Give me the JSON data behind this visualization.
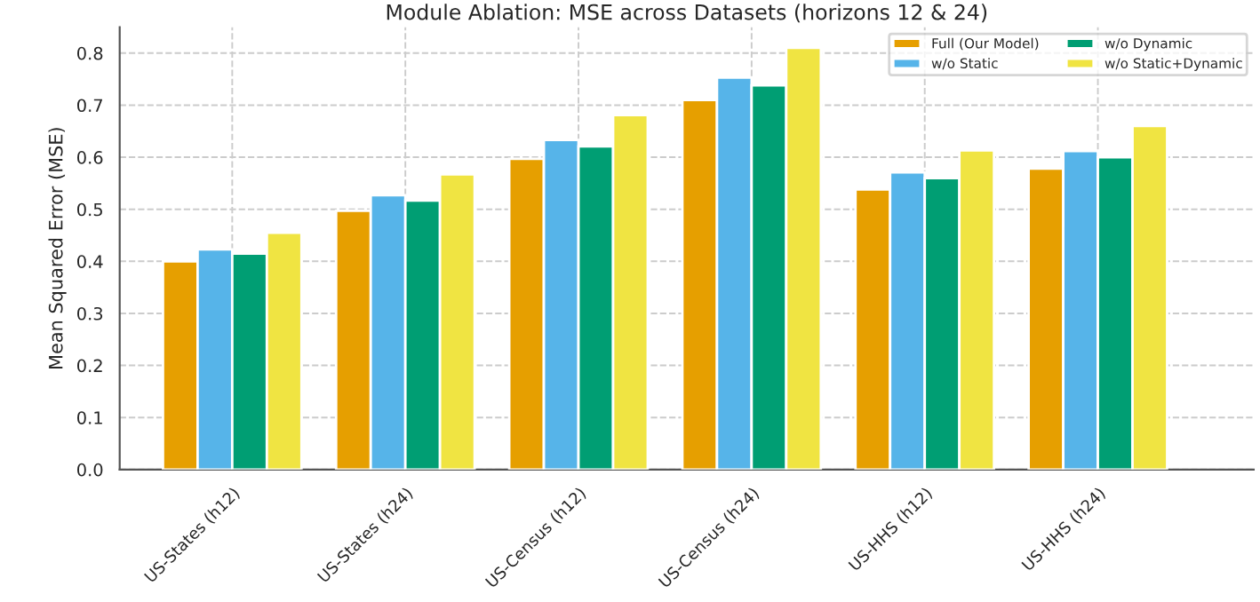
{
  "chart_data": {
    "type": "bar",
    "title": "Module Ablation: MSE across Datasets (horizons 12 & 24)",
    "ylabel": "Mean Squared Error (MSE)",
    "categories": [
      "US-States (h12)",
      "US-States (h24)",
      "US-Census (h12)",
      "US-Census (h24)",
      "US-HHS (h12)",
      "US-HHS (h24)"
    ],
    "series": [
      {
        "name": "Full (Our Model)",
        "color": "#e69f00",
        "values": [
          0.4,
          0.497,
          0.597,
          0.71,
          0.538,
          0.578
        ]
      },
      {
        "name": "w/o Static",
        "color": "#56b4e9",
        "values": [
          0.423,
          0.527,
          0.633,
          0.753,
          0.571,
          0.612
        ]
      },
      {
        "name": "w/o Dynamic",
        "color": "#009e73",
        "values": [
          0.415,
          0.517,
          0.621,
          0.738,
          0.56,
          0.6
        ]
      },
      {
        "name": "w/o Static+Dynamic",
        "color": "#f0e442",
        "values": [
          0.455,
          0.567,
          0.681,
          0.81,
          0.613,
          0.66
        ]
      }
    ],
    "ylim": [
      0,
      0.85
    ],
    "yticks": [
      {
        "value": 0,
        "label": "0.0"
      },
      0.1,
      0.2,
      0.3,
      0.4,
      0.5,
      0.6,
      0.7,
      0.8
    ],
    "grid": true,
    "legend": "top right"
  }
}
